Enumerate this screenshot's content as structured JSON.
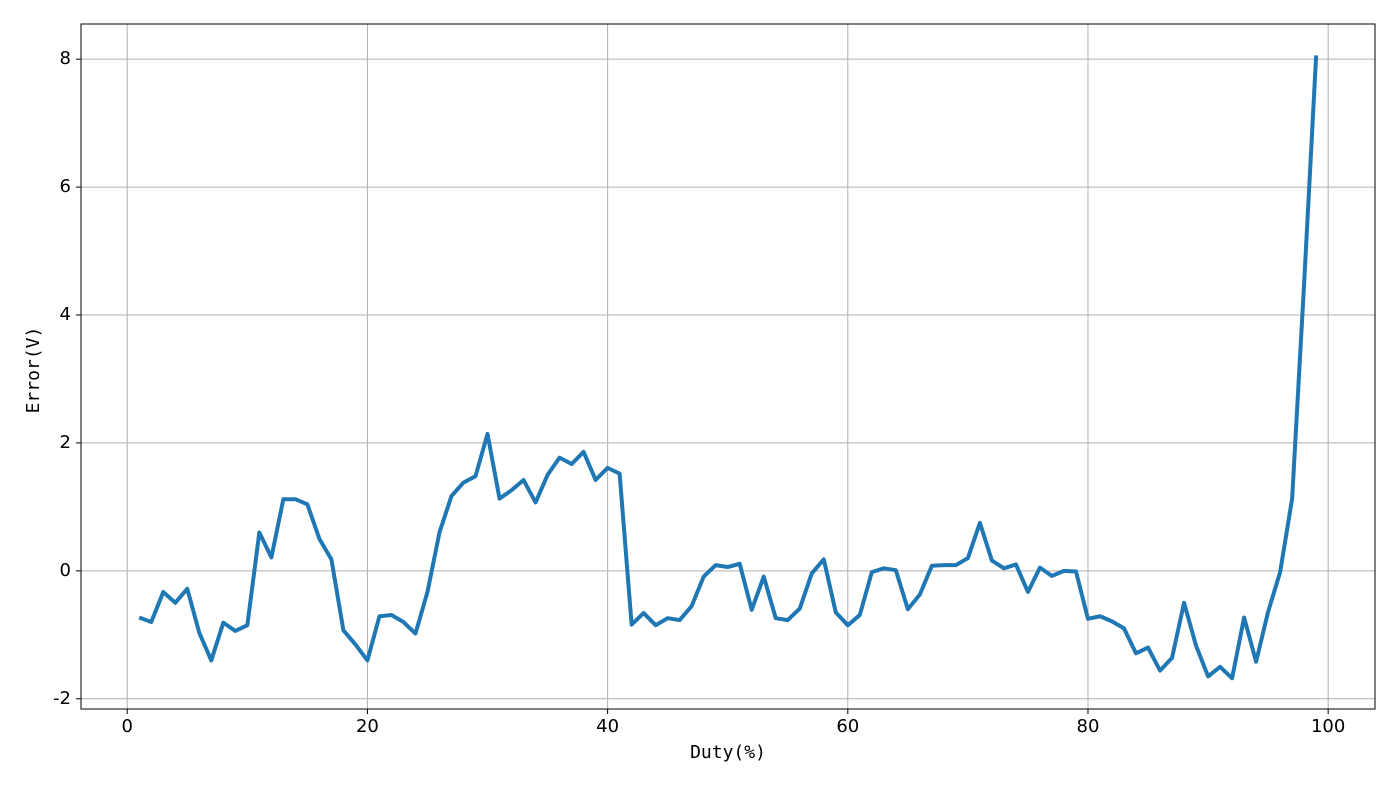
{
  "chart_data": {
    "type": "line",
    "x_label": "Duty(%)",
    "y_label": "Error(V)",
    "x": [
      1,
      2,
      3,
      4,
      5,
      6,
      7,
      8,
      9,
      10,
      11,
      12,
      13,
      14,
      15,
      16,
      17,
      18,
      19,
      20,
      21,
      22,
      23,
      24,
      25,
      26,
      27,
      28,
      29,
      30,
      31,
      32,
      33,
      34,
      35,
      36,
      37,
      38,
      39,
      40,
      41,
      42,
      43,
      44,
      45,
      46,
      47,
      48,
      49,
      50,
      51,
      52,
      53,
      54,
      55,
      56,
      57,
      58,
      59,
      60,
      61,
      62,
      63,
      64,
      65,
      66,
      67,
      68,
      69,
      70,
      71,
      72,
      73,
      74,
      75,
      76,
      77,
      78,
      79,
      80,
      81,
      82,
      83,
      84,
      85,
      86,
      87,
      88,
      89,
      90,
      91,
      92,
      93,
      94,
      95,
      96,
      97,
      98,
      99
    ],
    "series": [
      {
        "color": "#1f77b4",
        "values": [
          -0.73,
          -0.8,
          -0.33,
          -0.5,
          -0.28,
          -0.97,
          -1.4,
          -0.81,
          -0.94,
          -0.85,
          0.6,
          0.21,
          1.12,
          1.12,
          1.04,
          0.5,
          0.18,
          -0.93,
          -1.15,
          -1.4,
          -0.71,
          -0.69,
          -0.8,
          -0.98,
          -0.33,
          0.6,
          1.17,
          1.38,
          1.48,
          2.14,
          1.13,
          1.26,
          1.42,
          1.07,
          1.5,
          1.77,
          1.67,
          1.86,
          1.42,
          1.61,
          1.52,
          -0.84,
          -0.66,
          -0.85,
          -0.74,
          -0.77,
          -0.55,
          -0.09,
          0.09,
          0.06,
          0.11,
          -0.61,
          -0.09,
          -0.74,
          -0.77,
          -0.59,
          -0.04,
          0.18,
          -0.65,
          -0.85,
          -0.69,
          -0.02,
          0.04,
          0.01,
          -0.6,
          -0.37,
          0.08,
          0.09,
          0.09,
          0.2,
          0.75,
          0.16,
          0.04,
          0.1,
          -0.33,
          0.05,
          -0.08,
          0.0,
          -0.01,
          -0.75,
          -0.71,
          -0.79,
          -0.9,
          -1.29,
          -1.2,
          -1.56,
          -1.36,
          -0.5,
          -1.17,
          -1.65,
          -1.5,
          -1.68,
          -0.73,
          -1.42,
          -0.64,
          -0.02,
          1.13,
          4.5,
          8.06
        ]
      }
    ],
    "xlim": [
      -3.85,
      103.9
    ],
    "ylim": [
      -2.16,
      8.55
    ],
    "xticks": [
      0,
      20,
      40,
      60,
      80,
      100
    ],
    "yticks": [
      -2,
      0,
      2,
      4,
      6,
      8
    ],
    "grid": true
  }
}
